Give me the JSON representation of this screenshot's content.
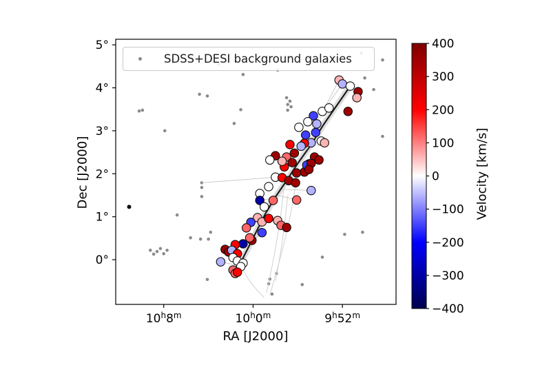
{
  "chart_data": {
    "type": "scatter",
    "title": "",
    "xlabel": "RA [J2000]",
    "ylabel": "Dec [J2000]",
    "x_axis": {
      "unit": "right ascension, hours:minutes (RA increases to the left)",
      "lim_minutes": [
        612.3,
        587.2
      ],
      "ticks": [
        {
          "v": 608,
          "h": "10",
          "h_sup": "h",
          "m": "8",
          "m_sup": "m"
        },
        {
          "v": 600,
          "h": "10",
          "h_sup": "h",
          "m": "0",
          "m_sup": "m"
        },
        {
          "v": 592,
          "h": "9",
          "h_sup": "h",
          "m": "52",
          "m_sup": "m"
        }
      ]
    },
    "y_axis": {
      "unit": "declination, degrees",
      "lim_deg": [
        -1.04,
        5.13
      ],
      "ticks": [
        {
          "v": 5,
          "label": "5°"
        },
        {
          "v": 4,
          "label": "4°"
        },
        {
          "v": 3,
          "label": "3°"
        },
        {
          "v": 2,
          "label": "2°"
        },
        {
          "v": 1,
          "label": "1°"
        },
        {
          "v": 0,
          "label": "0°"
        }
      ]
    },
    "legend": {
      "label": "SDSS+DESI background galaxies",
      "marker_color": "#8a8a8a"
    },
    "colorbar": {
      "label": "Velocity [km/s]",
      "lim": [
        -400,
        400
      ],
      "colormap": "seismic",
      "gradient_stops": [
        {
          "offset": "0%",
          "color": "#7f0000"
        },
        {
          "offset": "25%",
          "color": "#ff0000"
        },
        {
          "offset": "50%",
          "color": "#ffffff"
        },
        {
          "offset": "75%",
          "color": "#0000ff"
        },
        {
          "offset": "100%",
          "color": "#00004d"
        }
      ],
      "ticks": [
        {
          "v": 400,
          "label": "400"
        },
        {
          "v": 300,
          "label": "300"
        },
        {
          "v": 200,
          "label": "200"
        },
        {
          "v": 100,
          "label": "100"
        },
        {
          "v": 0,
          "label": "0"
        },
        {
          "v": -100,
          "label": "−100"
        },
        {
          "v": -200,
          "label": "−200"
        },
        {
          "v": -300,
          "label": "−300"
        },
        {
          "v": -400,
          "label": "−400"
        }
      ]
    },
    "filament_spine": [
      [
        601.4,
        -0.22
      ],
      [
        600.2,
        0.4
      ],
      [
        598.9,
        1.07
      ],
      [
        598.0,
        1.46
      ],
      [
        597.0,
        1.84
      ],
      [
        596.0,
        2.24
      ],
      [
        594.8,
        2.68
      ],
      [
        593.7,
        3.14
      ],
      [
        592.8,
        3.48
      ],
      [
        591.3,
        4.04
      ]
    ],
    "members_note": "each entry = [RA_minutes, Dec_deg, velocity_km_s]; color from seismic colormap",
    "members": [
      [
        592.3,
        4.18,
        60
      ],
      [
        592.0,
        4.09,
        -60
      ],
      [
        591.3,
        4.04,
        0
      ],
      [
        590.6,
        3.91,
        350
      ],
      [
        590.7,
        3.77,
        60
      ],
      [
        591.5,
        3.45,
        350
      ],
      [
        593.8,
        3.45,
        0
      ],
      [
        593.2,
        3.53,
        0
      ],
      [
        594.6,
        3.35,
        -150
      ],
      [
        594.3,
        3.16,
        -60
      ],
      [
        595.1,
        3.21,
        0
      ],
      [
        595.9,
        3.08,
        0
      ],
      [
        595.3,
        2.9,
        -150
      ],
      [
        594.4,
        2.96,
        -150
      ],
      [
        594.8,
        2.72,
        -60
      ],
      [
        593.9,
        2.76,
        0
      ],
      [
        593.6,
        2.72,
        60
      ],
      [
        595.4,
        2.71,
        200
      ],
      [
        595.7,
        2.64,
        -60
      ],
      [
        596.7,
        2.68,
        200
      ],
      [
        596.3,
        2.48,
        350
      ],
      [
        594.5,
        2.39,
        350
      ],
      [
        594.1,
        2.32,
        350
      ],
      [
        595.0,
        2.23,
        350
      ],
      [
        597.0,
        2.39,
        120
      ],
      [
        598.0,
        2.42,
        350
      ],
      [
        598.5,
        2.32,
        0
      ],
      [
        597.2,
        2.16,
        200
      ],
      [
        595.4,
        2.04,
        350
      ],
      [
        595.2,
        2.2,
        -150
      ],
      [
        597.4,
        2.29,
        60
      ],
      [
        596.5,
        2.26,
        350
      ],
      [
        594.8,
        2.24,
        350
      ],
      [
        595.0,
        2.1,
        350
      ],
      [
        596.1,
        2.02,
        350
      ],
      [
        598.0,
        1.92,
        0
      ],
      [
        597.4,
        1.91,
        200
      ],
      [
        596.8,
        1.84,
        350
      ],
      [
        596.2,
        1.79,
        350
      ],
      [
        598.6,
        1.7,
        0
      ],
      [
        599.4,
        1.54,
        0
      ],
      [
        599.4,
        1.38,
        -300
      ],
      [
        594.8,
        1.61,
        -60
      ],
      [
        596.1,
        1.39,
        120
      ],
      [
        599.0,
        1.23,
        0
      ],
      [
        598.2,
        1.38,
        120
      ],
      [
        599.6,
        0.98,
        60
      ],
      [
        599.2,
        0.88,
        60
      ],
      [
        597.8,
        0.91,
        60
      ],
      [
        597.5,
        0.8,
        120
      ],
      [
        598.6,
        0.96,
        200
      ],
      [
        599.2,
        0.63,
        -150
      ],
      [
        597.0,
        0.75,
        350
      ],
      [
        600.2,
        0.87,
        -150
      ],
      [
        600.6,
        0.74,
        120
      ],
      [
        600.1,
        0.45,
        350
      ],
      [
        600.3,
        0.51,
        120
      ],
      [
        600.9,
        0.37,
        -300
      ],
      [
        601.6,
        0.35,
        200
      ],
      [
        602.5,
        0.24,
        350
      ],
      [
        602.2,
        0.18,
        350
      ],
      [
        601.9,
        0.22,
        -60
      ],
      [
        601.4,
        0.14,
        200
      ],
      [
        601.8,
        0.05,
        0
      ],
      [
        602.9,
        -0.05,
        -60
      ],
      [
        601.4,
        -0.03,
        0
      ],
      [
        600.9,
        -0.08,
        0
      ],
      [
        601.1,
        -0.16,
        0
      ],
      [
        601.8,
        -0.24,
        120
      ],
      [
        601.6,
        -0.32,
        120
      ],
      [
        601.4,
        -0.29,
        200
      ]
    ],
    "background_galaxies": [
      [
        600.9,
        4.31
      ],
      [
        590.3,
        4.81
      ],
      [
        588.4,
        4.65
      ],
      [
        603.1,
        4.55
      ],
      [
        597.8,
        4.41
      ],
      [
        593.8,
        4.6
      ],
      [
        604.8,
        3.85
      ],
      [
        604.1,
        3.81
      ],
      [
        610.2,
        3.46
      ],
      [
        609.9,
        3.48
      ],
      [
        607.9,
        3.0
      ],
      [
        601.1,
        3.49
      ],
      [
        601.7,
        3.17
      ],
      [
        597.0,
        3.77
      ],
      [
        596.7,
        3.69
      ],
      [
        596.9,
        3.61
      ],
      [
        596.6,
        3.56
      ],
      [
        596.9,
        3.48
      ],
      [
        590.0,
        4.23
      ],
      [
        589.2,
        3.96
      ],
      [
        588.4,
        2.87
      ],
      [
        604.6,
        1.79
      ],
      [
        604.6,
        1.68
      ],
      [
        604.6,
        1.47
      ],
      [
        606.8,
        1.04
      ],
      [
        605.6,
        0.51
      ],
      [
        609.2,
        0.22
      ],
      [
        608.6,
        0.19
      ],
      [
        608.3,
        0.26
      ],
      [
        608.0,
        0.14
      ],
      [
        607.7,
        0.22
      ],
      [
        608.9,
        0.13
      ],
      [
        604.7,
        0.48
      ],
      [
        604.0,
        0.48
      ],
      [
        603.8,
        0.64
      ],
      [
        604.1,
        -0.46
      ],
      [
        591.8,
        0.59
      ],
      [
        590.2,
        0.64
      ],
      [
        593.8,
        0.06
      ],
      [
        595.6,
        -0.58
      ],
      [
        597.9,
        -0.32
      ],
      [
        598.5,
        -0.45
      ],
      [
        598.6,
        -0.56
      ],
      [
        598.3,
        -0.8
      ]
    ],
    "dark_point": [
      611.1,
      1.23
    ],
    "connectors": [
      [
        [
          594.6,
          3.35
        ],
        [
          593.9,
          3.3
        ]
      ],
      [
        [
          595.3,
          2.9
        ],
        [
          594.5,
          2.82
        ]
      ],
      [
        [
          595.7,
          2.64
        ],
        [
          595.1,
          2.58
        ]
      ],
      [
        [
          594.8,
          1.61
        ],
        [
          597.3,
          1.64
        ]
      ],
      [
        [
          596.1,
          1.39
        ],
        [
          597.8,
          1.5
        ]
      ],
      [
        [
          599.2,
          0.63
        ],
        [
          600.2,
          0.4
        ]
      ],
      [
        [
          602.9,
          -0.05
        ],
        [
          601.3,
          -0.14
        ]
      ],
      [
        [
          600.2,
          0.87
        ],
        [
          599.4,
          0.88
        ]
      ],
      [
        [
          592.3,
          4.18
        ],
        [
          593.7,
          3.48
        ]
      ],
      [
        [
          592.0,
          4.09
        ],
        [
          593.7,
          3.48
        ]
      ],
      [
        [
          599.4,
          1.38
        ],
        [
          598.4,
          1.42
        ]
      ],
      [
        [
          604.6,
          1.79
        ],
        [
          598.0,
          1.92
        ]
      ]
    ],
    "tails": [
      [
        [
          596.2,
          1.75
        ],
        [
          596.7,
          0.75
        ],
        [
          598.5,
          -0.82
        ]
      ],
      [
        [
          597.2,
          1.84
        ],
        [
          597.5,
          0.75
        ],
        [
          598.8,
          -0.77
        ]
      ],
      [
        [
          596.9,
          1.5
        ],
        [
          597.3,
          0.4
        ],
        [
          598.0,
          -0.5
        ]
      ],
      [
        [
          601.0,
          -0.18
        ],
        [
          600.4,
          -0.53
        ],
        [
          599.0,
          -0.88
        ]
      ]
    ]
  },
  "colors": {
    "axis": "#000000",
    "background_dot": "#8a8a8a",
    "dark_dot": "#111111",
    "member_edge": "#0d0d0d",
    "spine": "#1c1c1c",
    "band": "#d8d8d8",
    "connector": "#c4c4c4",
    "tail": "#cccccc",
    "tick_text": "#000000"
  }
}
